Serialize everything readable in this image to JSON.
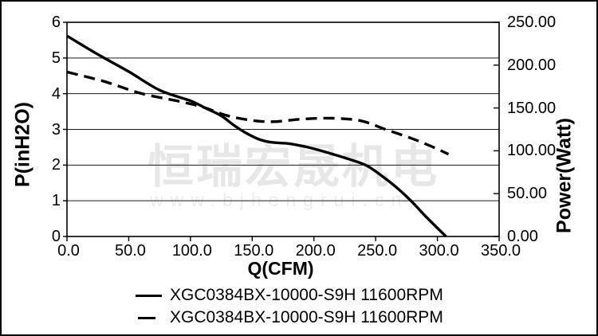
{
  "watermark": {
    "line1": "恒瑞宏晟机电",
    "line2": "www.bjhengrui.cn"
  },
  "colors": {
    "curve": "#000000",
    "grid": "#1a1a1a",
    "frame": "#000000",
    "watermark_cjk": "#e7e7e7",
    "watermark_url": "#efeaea"
  },
  "chart_data": {
    "type": "line",
    "title": "",
    "xlabel": "Q(CFM)",
    "ylabel_left": "P(inH2O)",
    "ylabel_right": "Power(Watt)",
    "xlim": [
      0,
      350
    ],
    "ylim_left": [
      0,
      6
    ],
    "ylim_right": [
      0,
      250
    ],
    "grid": "horizontal",
    "legend_position": "bottom",
    "x_ticks": {
      "values": [
        0,
        50,
        100,
        150,
        200,
        250,
        300,
        350
      ],
      "labels": [
        "0.0",
        "50.0",
        "100.0",
        "150.0",
        "200.0",
        "250.0",
        "300.0",
        "350.0"
      ]
    },
    "y_left_ticks": {
      "values": [
        0,
        1,
        2,
        3,
        4,
        5,
        6
      ],
      "labels": [
        "0",
        "1",
        "2",
        "3",
        "4",
        "5",
        "6"
      ]
    },
    "y_right_ticks": {
      "values": [
        0,
        50,
        100,
        150,
        200,
        250
      ],
      "labels": [
        "0.00",
        "50.00",
        "100.00",
        "150.00",
        "200.00",
        "250.00"
      ]
    },
    "series": [
      {
        "name": "XGC0384BX-10000-S9H 11600RPM",
        "axis": "left",
        "units": "inH2O",
        "style": "solid",
        "points": [
          [
            0,
            5.62
          ],
          [
            25,
            5.1
          ],
          [
            50,
            4.62
          ],
          [
            75,
            4.1
          ],
          [
            100,
            3.8
          ],
          [
            112,
            3.6
          ],
          [
            125,
            3.38
          ],
          [
            135,
            3.12
          ],
          [
            145,
            2.9
          ],
          [
            155,
            2.73
          ],
          [
            165,
            2.64
          ],
          [
            180,
            2.6
          ],
          [
            195,
            2.5
          ],
          [
            212,
            2.34
          ],
          [
            228,
            2.17
          ],
          [
            243,
            1.98
          ],
          [
            258,
            1.62
          ],
          [
            270,
            1.28
          ],
          [
            280,
            0.95
          ],
          [
            290,
            0.58
          ],
          [
            307,
            0
          ]
        ]
      },
      {
        "name": "XGC0384BX-10000-S9H 11600RPM",
        "axis": "right",
        "units": "Watt",
        "style": "dashed",
        "points": [
          [
            0,
            192
          ],
          [
            30,
            181
          ],
          [
            60,
            167
          ],
          [
            90,
            158
          ],
          [
            110,
            151
          ],
          [
            130,
            141
          ],
          [
            150,
            135.5
          ],
          [
            168,
            134
          ],
          [
            190,
            137
          ],
          [
            215,
            138
          ],
          [
            238,
            135
          ],
          [
            258,
            125
          ],
          [
            280,
            114
          ],
          [
            297,
            104
          ],
          [
            309,
            96
          ]
        ]
      }
    ]
  }
}
